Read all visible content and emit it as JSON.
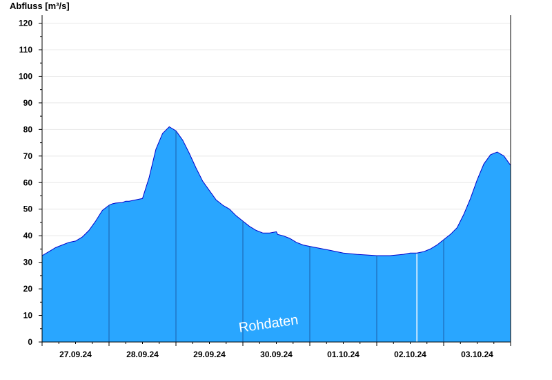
{
  "chart_data": {
    "type": "area",
    "title": "",
    "ylabel": "Abfluss [m³/s]",
    "xlabel": "",
    "ylim": [
      0,
      123
    ],
    "yticks": [
      0,
      10,
      20,
      30,
      40,
      50,
      60,
      70,
      80,
      90,
      100,
      110,
      120
    ],
    "xlim": [
      0,
      7
    ],
    "day_ticks": [
      0,
      1,
      2,
      3,
      4,
      5,
      6,
      7
    ],
    "x_tick_labels": [
      {
        "x": 0.5,
        "label": "27.09.24"
      },
      {
        "x": 1.5,
        "label": "28.09.24"
      },
      {
        "x": 2.5,
        "label": "29.09.24"
      },
      {
        "x": 3.5,
        "label": "30.09.24"
      },
      {
        "x": 4.5,
        "label": "01.10.24"
      },
      {
        "x": 5.5,
        "label": "02.10.24"
      },
      {
        "x": 6.5,
        "label": "03.10.24"
      }
    ],
    "grid": true,
    "watermark": "Rohdaten",
    "colors": {
      "fill": "#29a6ff",
      "line": "#0000cc",
      "grid": "#e8e8e8",
      "day_line": "#1a5fa8"
    },
    "series": [
      {
        "x": [
          0,
          0.1,
          0.2,
          0.3,
          0.4,
          0.5,
          0.6,
          0.7,
          0.8,
          0.9,
          1.0,
          1.05,
          1.1,
          1.2,
          1.25,
          1.3,
          1.4,
          1.5,
          1.6,
          1.7,
          1.8,
          1.9,
          2.0,
          2.1,
          2.2,
          2.3,
          2.4,
          2.5,
          2.6,
          2.7,
          2.8,
          2.9,
          3.0,
          3.1,
          3.2,
          3.3,
          3.4,
          3.5,
          3.52,
          3.6,
          3.7,
          3.8,
          3.9,
          4.0,
          4.1,
          4.2,
          4.3,
          4.5,
          4.7,
          5.0,
          5.2,
          5.4,
          5.5,
          5.6,
          5.7,
          5.8,
          5.9,
          6.0,
          6.1,
          6.2,
          6.3,
          6.4,
          6.5,
          6.6,
          6.7,
          6.8,
          6.9,
          7.0
        ],
        "y": [
          32.5,
          34,
          35.5,
          36.5,
          37.5,
          38,
          39.5,
          42,
          45.5,
          49.5,
          51.5,
          52,
          52.3,
          52.5,
          53,
          53,
          53.5,
          54,
          62,
          72.5,
          78.5,
          81,
          79.5,
          76,
          71,
          65.5,
          60.5,
          57,
          53.5,
          51.5,
          50,
          47.5,
          45.5,
          43.5,
          42,
          41,
          41,
          41.5,
          40.5,
          40,
          39,
          37.5,
          36.5,
          36,
          35.5,
          35,
          34.5,
          33.5,
          33,
          32.5,
          32.5,
          33,
          33.5,
          33.5,
          34,
          35,
          36.5,
          38.5,
          40.5,
          43,
          48,
          54,
          61,
          67,
          70.5,
          71.5,
          70,
          66.5
        ]
      }
    ]
  }
}
